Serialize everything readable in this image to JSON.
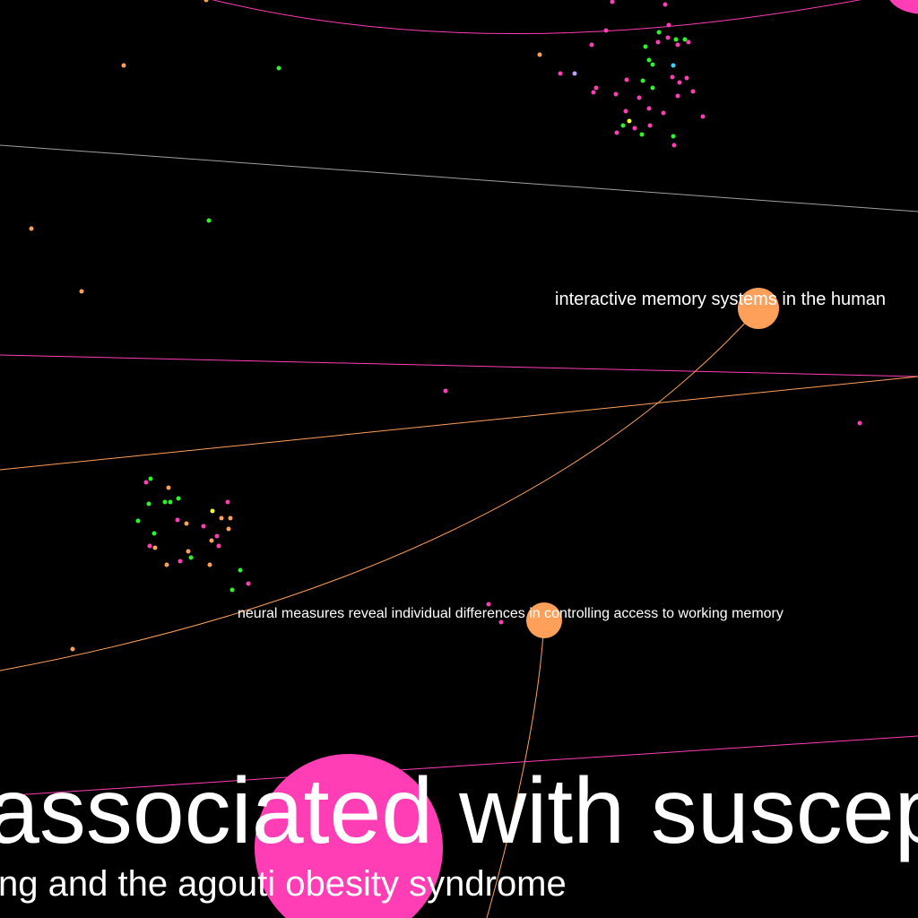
{
  "labels": {
    "memory_systems": "interactive memory systems in the human",
    "neural_measures": "neural measures reveal individual differences in controlling access to working memory",
    "big_title": "associated with suscep",
    "big_subtitle": "ng and the agouti obesity syndrome"
  },
  "colors": {
    "background": "#000000",
    "pink": "#ff3db4",
    "orange": "#ffa05a",
    "green": "#2af52a",
    "yellow": "#f0ff2a",
    "cyan": "#3ad0ff",
    "lavender": "#b8a0ff",
    "gray": "#a0a0a0",
    "label": "#ffffff"
  }
}
